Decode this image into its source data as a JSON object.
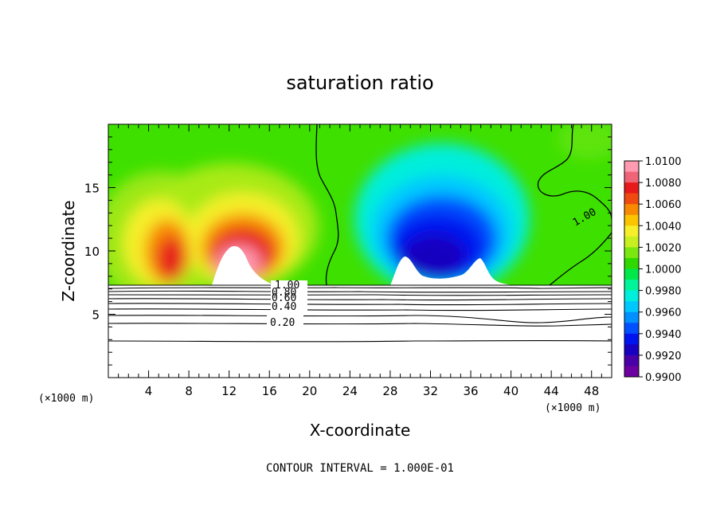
{
  "chart_data": {
    "type": "heatmap",
    "title": "saturation ratio",
    "xlabel": "X-coordinate",
    "ylabel": "Z-coordinate",
    "x_unit": "(×1000 m)",
    "x_unit_right": "(×1000 m)",
    "footer": "CONTOUR INTERVAL = 1.000E-01",
    "xlim": [
      0,
      50
    ],
    "ylim": [
      0,
      20
    ],
    "x_ticks": [
      "4",
      "8",
      "12",
      "16",
      "20",
      "24",
      "28",
      "32",
      "36",
      "40",
      "44",
      "48"
    ],
    "y_ticks": [
      "5",
      "10",
      "15"
    ],
    "colorbar": {
      "min": 0.99,
      "max": 1.01,
      "labels": [
        "1.0100",
        "1.0080",
        "1.0060",
        "1.0040",
        "1.0020",
        "1.0000",
        "0.9980",
        "0.9960",
        "0.9940",
        "0.9920",
        "0.9900"
      ],
      "colors": [
        "#ff9ab0",
        "#f06478",
        "#e61a1a",
        "#ef4a10",
        "#f78a00",
        "#fbc400",
        "#f6ef2a",
        "#c8f020",
        "#7ae80e",
        "#2ed800",
        "#00e84a",
        "#00f49a",
        "#00eedc",
        "#00c8ff",
        "#0090ff",
        "#0050ff",
        "#0014f0",
        "#1800c0",
        "#4a00a8",
        "#6c00a0"
      ]
    },
    "contour_labels": [
      "1.00",
      "0.80",
      "0.60",
      "0.40",
      "0.20",
      "1.00"
    ],
    "background_value": 1.0,
    "features": [
      {
        "kind": "supersaturated",
        "x": 5,
        "z": 11.5,
        "peak": 1.007
      },
      {
        "kind": "supersaturated",
        "x": 13,
        "z": 10.5,
        "peak": 1.01
      },
      {
        "kind": "subsaturated",
        "x": 32,
        "z": 10.5,
        "peak": 0.99
      }
    ]
  }
}
